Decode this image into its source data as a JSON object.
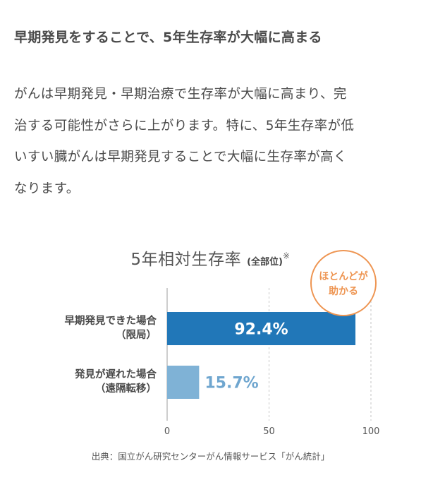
{
  "heading": "早期発見をすることで、5年生存率が大幅に高まる",
  "body_lines": [
    "がんは早期発見・早期治療で生存率が大幅に高まり、完",
    "治する可能性がさらに上がります。特に、5年生存率が低",
    "いすい臓がんは早期発見することで大幅に生存率が高く",
    "なります。"
  ],
  "chart_data": {
    "type": "bar",
    "orientation": "horizontal",
    "title": "5年相対生存率",
    "subtitle": "(全部位)",
    "title_mark": "※",
    "categories": [
      [
        "早期発見できた場合",
        "（限局）"
      ],
      [
        "発見が遅れた場合",
        "（遠隔転移）"
      ]
    ],
    "values": [
      92.4,
      15.7
    ],
    "value_labels": [
      "92.4%",
      "15.7%"
    ],
    "colors": [
      "#2177b8",
      "#7fb2d6"
    ],
    "label_colors": [
      "#ffffff",
      "#6fa6cf"
    ],
    "xlim": [
      0,
      100
    ],
    "xticks": [
      "0",
      "50",
      "100"
    ],
    "grid": "dashed vertical at 50 and 100",
    "callout": [
      "ほとんどが",
      "助かる"
    ],
    "callout_color": "#ee9552"
  },
  "source": "出典：国立がん研究センターがん情報サービス「がん統計」"
}
